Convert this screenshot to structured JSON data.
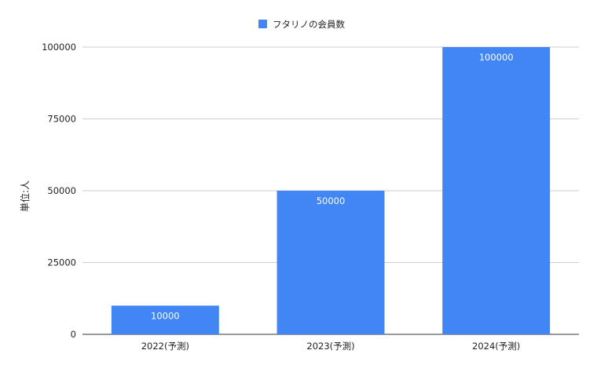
{
  "chart_data": {
    "type": "bar",
    "categories": [
      "2022(予測)",
      "2023(予測)",
      "2024(予測)"
    ],
    "series": [
      {
        "name": "フタリノの会員数",
        "values": [
          10000,
          50000,
          100000
        ],
        "color": "#4285f4"
      }
    ],
    "data_labels": [
      "10000",
      "50000",
      "100000"
    ],
    "xlabel": "",
    "ylabel": "単位:人",
    "ylim": [
      0,
      100000
    ],
    "yticks": [
      0,
      25000,
      50000,
      75000,
      100000
    ],
    "ytick_labels": [
      "0",
      "25000",
      "50000",
      "75000",
      "100000"
    ],
    "grid": true,
    "legend_position": "top"
  }
}
